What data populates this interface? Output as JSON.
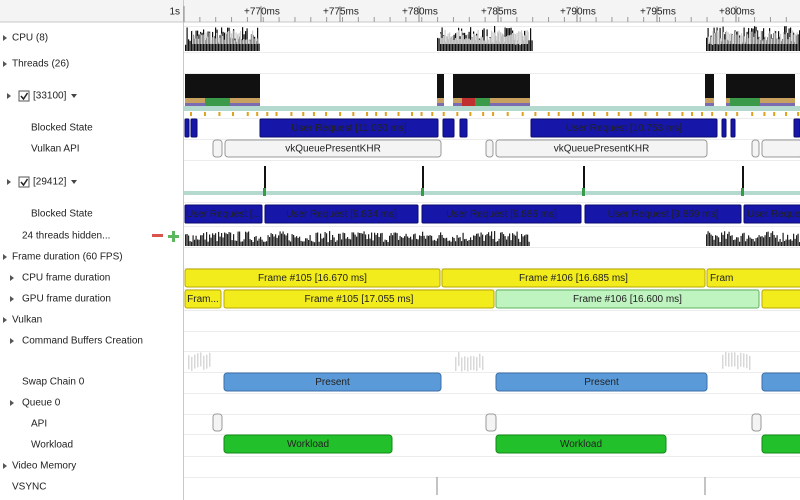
{
  "ruler": {
    "ticks": [
      "1s",
      "+770ms",
      "+775ms",
      "+780ms",
      "+785ms",
      "+790ms",
      "+795ms",
      "+800ms"
    ]
  },
  "rows": [
    "CPU (8)",
    "Threads (26)",
    "[33100]",
    "Blocked State",
    "Vulkan API",
    "[29412]",
    "Blocked State",
    "24 threads hidden...",
    "Frame duration (60 FPS)",
    "CPU frame duration",
    "GPU frame duration",
    "Vulkan",
    "Command Buffers Creation",
    "Swap Chain 0",
    "Queue 0",
    "API",
    "Workload",
    "Video Memory",
    "VSYNC"
  ],
  "bars": {
    "blocked_1": [
      "User Request [11.030 ms]",
      "User Request [10.753 ms]"
    ],
    "vulkan_api": [
      "vkQueuePresentKHR",
      "vkQueuePresentKHR"
    ],
    "blocked_2": [
      "User Request [...",
      "User Request [9.834 ms]",
      "User Request [9.886 ms]",
      "User Request [9.869 ms]",
      "User Request ["
    ],
    "cpu_frame": [
      "Frame #105 [16.670 ms]",
      "Frame #106 [16.685 ms]",
      "Fram"
    ],
    "gpu_frame": [
      "Fram...",
      "Frame #105 [17.055 ms]",
      "Frame #106 [16.600 ms]"
    ],
    "swap_chain": [
      "Present",
      "Present"
    ],
    "workload": [
      "Workload",
      "Workload"
    ]
  }
}
